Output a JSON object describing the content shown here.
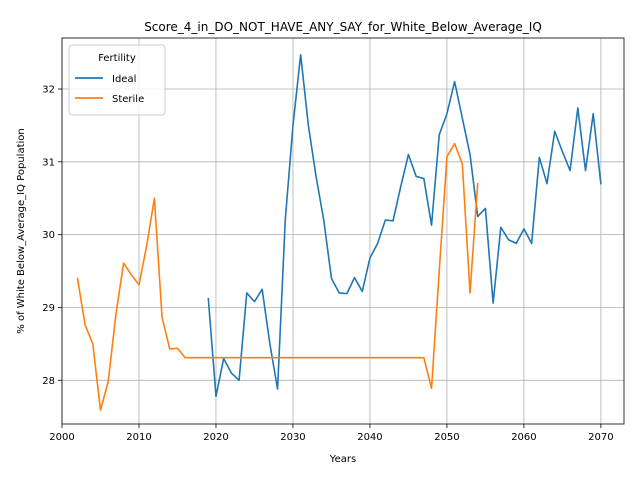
{
  "chart_data": {
    "type": "line",
    "title": "Score_4_in_DO_NOT_HAVE_ANY_SAY_for_White_Below_Average_IQ",
    "xlabel": "Years",
    "ylabel": "% of White Below_Average_IQ Population",
    "xlim": [
      2000,
      2073
    ],
    "ylim": [
      27.4,
      32.7
    ],
    "xticks": [
      2000,
      2010,
      2020,
      2030,
      2040,
      2050,
      2060,
      2070
    ],
    "yticks": [
      28,
      29,
      30,
      31,
      32
    ],
    "grid": true,
    "legend": {
      "title": "Fertility",
      "placement": "top-left"
    },
    "series": [
      {
        "name": "Ideal",
        "color": "#1f77b4",
        "x": [
          2019,
          2020,
          2021,
          2022,
          2023,
          2024,
          2025,
          2026,
          2027,
          2028,
          2029,
          2030,
          2031,
          2032,
          2033,
          2034,
          2035,
          2036,
          2037,
          2038,
          2039,
          2040,
          2041,
          2042,
          2043,
          2044,
          2045,
          2046,
          2047,
          2048,
          2049,
          2050,
          2051,
          2052,
          2053,
          2054,
          2055,
          2056,
          2057,
          2058,
          2059,
          2060,
          2061,
          2062,
          2063,
          2064,
          2065,
          2066,
          2067,
          2068,
          2069,
          2070
        ],
        "values": [
          29.13,
          27.78,
          28.3,
          28.1,
          28.0,
          29.2,
          29.08,
          29.25,
          28.5,
          27.88,
          30.2,
          31.5,
          32.47,
          31.5,
          30.8,
          30.2,
          29.4,
          29.2,
          29.19,
          29.41,
          29.22,
          29.68,
          29.88,
          30.2,
          30.19,
          30.66,
          31.1,
          30.8,
          30.77,
          30.13,
          31.37,
          31.66,
          32.1,
          31.6,
          31.1,
          30.25,
          30.36,
          29.06,
          30.1,
          29.93,
          29.88,
          30.08,
          29.88,
          31.06,
          30.7,
          31.42,
          31.14,
          30.88,
          31.74,
          30.88,
          31.66,
          30.69
        ]
      },
      {
        "name": "Sterile",
        "color": "#ff7f0e",
        "x": [
          2002,
          2003,
          2004,
          2005,
          2006,
          2007,
          2008,
          2009,
          2010,
          2011,
          2012,
          2013,
          2014,
          2015,
          2016,
          2017,
          2018,
          2019,
          2020,
          2021,
          2022,
          2023,
          2024,
          2025,
          2026,
          2027,
          2028,
          2029,
          2030,
          2031,
          2032,
          2033,
          2034,
          2035,
          2036,
          2037,
          2038,
          2039,
          2040,
          2041,
          2042,
          2043,
          2044,
          2045,
          2046,
          2047,
          2048,
          2049,
          2050,
          2051,
          2052,
          2053,
          2054
        ],
        "values": [
          29.41,
          28.76,
          28.5,
          27.59,
          27.98,
          28.9,
          29.61,
          29.45,
          29.31,
          29.85,
          30.5,
          28.86,
          28.43,
          28.44,
          28.31,
          28.31,
          28.31,
          28.31,
          28.31,
          28.31,
          28.31,
          28.31,
          28.31,
          28.31,
          28.31,
          28.31,
          28.31,
          28.31,
          28.31,
          28.31,
          28.31,
          28.31,
          28.31,
          28.31,
          28.31,
          28.31,
          28.31,
          28.31,
          28.31,
          28.31,
          28.31,
          28.31,
          28.31,
          28.31,
          28.31,
          28.31,
          27.89,
          29.5,
          31.07,
          31.25,
          30.97,
          29.2,
          30.71
        ]
      }
    ]
  }
}
